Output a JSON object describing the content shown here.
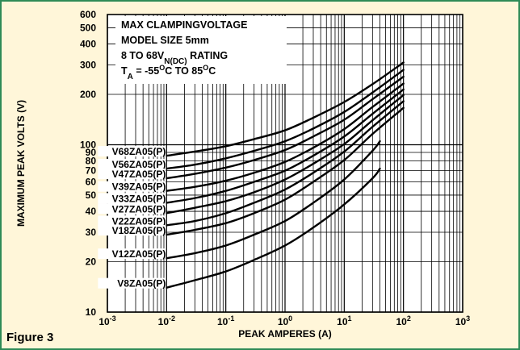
{
  "figure_label": "Figure 3",
  "chart_data": {
    "type": "line",
    "xlabel": "PEAK AMPERES (A)",
    "ylabel": "MAXIMUM PEAK VOLTS (V)",
    "x_scale": "log",
    "y_scale": "log",
    "xlim": [
      0.001,
      1000
    ],
    "ylim": [
      10,
      600
    ],
    "grid": true,
    "x_ticks": [
      {
        "value": 0.001,
        "base": "10",
        "exp": "-3"
      },
      {
        "value": 0.01,
        "base": "10",
        "exp": "-2"
      },
      {
        "value": 0.1,
        "base": "10",
        "exp": "-1"
      },
      {
        "value": 1,
        "base": "10",
        "exp": "0"
      },
      {
        "value": 10,
        "base": "10",
        "exp": "1"
      },
      {
        "value": 100,
        "base": "10",
        "exp": "2"
      },
      {
        "value": 1000,
        "base": "10",
        "exp": "3"
      }
    ],
    "y_ticks": [
      {
        "value": 10,
        "label": "10"
      },
      {
        "value": 20,
        "label": "20"
      },
      {
        "value": 30,
        "label": "30"
      },
      {
        "value": 40,
        "label": "40"
      },
      {
        "value": 50,
        "label": "50"
      },
      {
        "value": 60,
        "label": "60"
      },
      {
        "value": 70,
        "label": "70"
      },
      {
        "value": 80,
        "label": "80"
      },
      {
        "value": 90,
        "label": "90"
      },
      {
        "value": 100,
        "label": "100"
      },
      {
        "value": 200,
        "label": "200"
      },
      {
        "value": 300,
        "label": "300"
      },
      {
        "value": 400,
        "label": "400"
      },
      {
        "value": 500,
        "label": "500"
      },
      {
        "value": 600,
        "label": "600"
      }
    ],
    "legend": {
      "placement": "top-left",
      "lines": [
        {
          "parts": [
            {
              "text": "MAX CLAMPINGVOLTAGE"
            }
          ]
        },
        {
          "parts": [
            {
              "text": "MODEL SIZE 5mm"
            }
          ]
        },
        {
          "parts": [
            {
              "text": "8 TO 68V"
            },
            {
              "text": "N(DC)",
              "shift": "sub"
            },
            {
              "text": " RATING"
            }
          ]
        },
        {
          "parts": [
            {
              "text": "T"
            },
            {
              "text": "A",
              "shift": "sub"
            },
            {
              "text": " = -55"
            },
            {
              "text": "O",
              "shift": "super"
            },
            {
              "text": "C TO 85"
            },
            {
              "text": "O",
              "shift": "super"
            },
            {
              "text": "C"
            }
          ]
        }
      ]
    },
    "series": [
      {
        "name": "V68ZA05(P)",
        "x": [
          0.01,
          0.03,
          0.1,
          0.3,
          1,
          3,
          10,
          30,
          100
        ],
        "y": [
          86,
          91,
          98,
          108,
          122,
          145,
          180,
          230,
          310
        ]
      },
      {
        "name": "V56ZA05(P)",
        "x": [
          0.01,
          0.03,
          0.1,
          0.3,
          1,
          3,
          10,
          30,
          100
        ],
        "y": [
          72,
          76,
          83,
          92,
          105,
          125,
          157,
          205,
          280
        ]
      },
      {
        "name": "V47ZA05(P)",
        "x": [
          0.01,
          0.03,
          0.1,
          0.3,
          1,
          3,
          10,
          30,
          100
        ],
        "y": [
          63,
          67,
          73,
          81,
          93,
          112,
          141,
          187,
          255
        ]
      },
      {
        "name": "V39ZA05(P)",
        "x": [
          0.01,
          0.03,
          0.1,
          0.3,
          1,
          3,
          10,
          30,
          100
        ],
        "y": [
          53,
          56,
          61,
          68,
          79,
          96,
          124,
          168,
          232
        ]
      },
      {
        "name": "V33ZA05(P)",
        "x": [
          0.01,
          0.03,
          0.1,
          0.3,
          1,
          3,
          10,
          30,
          100
        ],
        "y": [
          45,
          48,
          53,
          60,
          70,
          86,
          112,
          153,
          214
        ]
      },
      {
        "name": "V27ZA05(P)",
        "x": [
          0.01,
          0.03,
          0.1,
          0.3,
          1,
          3,
          10,
          30,
          100
        ],
        "y": [
          39,
          42,
          46,
          52,
          62,
          77,
          101,
          140,
          198
        ]
      },
      {
        "name": "V22ZA05(P)",
        "x": [
          0.01,
          0.03,
          0.1,
          0.3,
          1,
          3,
          10,
          30,
          100
        ],
        "y": [
          33,
          35,
          39,
          45,
          54,
          68,
          91,
          128,
          182
        ]
      },
      {
        "name": "V18ZA05(P)",
        "x": [
          0.01,
          0.03,
          0.1,
          0.3,
          1,
          3,
          10,
          30,
          100
        ],
        "y": [
          29,
          31,
          34,
          39,
          47,
          60,
          81,
          116,
          166
        ]
      },
      {
        "name": "V12ZA05(P)",
        "x": [
          0.01,
          0.03,
          0.1,
          0.3,
          1,
          3,
          10,
          30,
          40
        ],
        "y": [
          21,
          22.5,
          25,
          29,
          35,
          45,
          62,
          92,
          105
        ]
      },
      {
        "name": "V8ZA05(P)",
        "x": [
          0.01,
          0.03,
          0.1,
          0.3,
          1,
          3,
          10,
          30,
          40
        ],
        "y": [
          14,
          15.5,
          17.5,
          20.5,
          25,
          32,
          44,
          63,
          72
        ]
      }
    ]
  }
}
